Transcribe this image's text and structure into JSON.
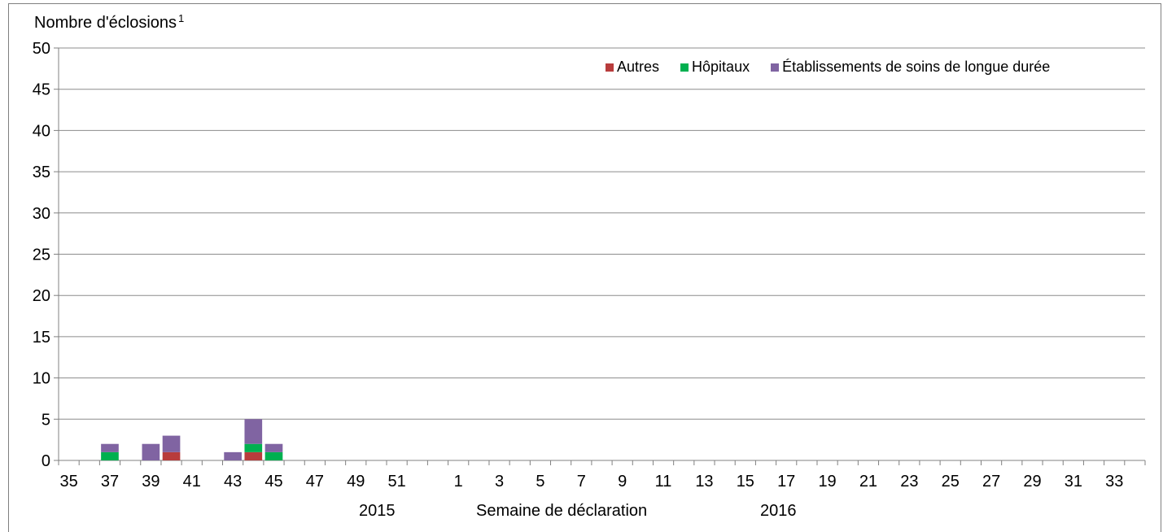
{
  "chart_data": {
    "type": "bar",
    "stacked": true,
    "ylabel": "Nombre d'éclosions",
    "ylabel_superscript": "1",
    "xlabel": "Semaine de déclaration",
    "year_labels": [
      "2015",
      "2016"
    ],
    "ylim": [
      0,
      50
    ],
    "yticks": [
      0,
      5,
      10,
      15,
      20,
      25,
      30,
      35,
      40,
      45,
      50
    ],
    "grid": true,
    "legend_position": "top-right",
    "categories": [
      "35",
      "36",
      "37",
      "38",
      "39",
      "40",
      "41",
      "42",
      "43",
      "44",
      "45",
      "46",
      "47",
      "48",
      "49",
      "50",
      "51",
      "52",
      "53",
      "1",
      "2",
      "3",
      "4",
      "5",
      "6",
      "7",
      "8",
      "9",
      "10",
      "11",
      "12",
      "13",
      "14",
      "15",
      "16",
      "17",
      "18",
      "19",
      "20",
      "21",
      "22",
      "23",
      "24",
      "25",
      "26",
      "27",
      "28",
      "29",
      "30",
      "31",
      "32",
      "33",
      "34"
    ],
    "x_tick_labels": [
      "35",
      "37",
      "39",
      "41",
      "43",
      "45",
      "47",
      "49",
      "51",
      "1",
      "3",
      "5",
      "7",
      "9",
      "11",
      "13",
      "15",
      "17",
      "19",
      "21",
      "23",
      "25",
      "27",
      "29",
      "31",
      "33"
    ],
    "series": [
      {
        "name": "Autres",
        "color": "#b83c3c",
        "values": [
          0,
          0,
          0,
          0,
          0,
          1,
          0,
          0,
          0,
          1,
          0,
          0,
          0,
          0,
          0,
          0,
          0,
          0,
          0,
          0,
          0,
          0,
          0,
          0,
          0,
          0,
          0,
          0,
          0,
          0,
          0,
          0,
          0,
          0,
          0,
          0,
          0,
          0,
          0,
          0,
          0,
          0,
          0,
          0,
          0,
          0,
          0,
          0,
          0,
          0,
          0,
          0,
          0
        ]
      },
      {
        "name": "Hôpitaux",
        "color": "#00b050",
        "values": [
          0,
          0,
          1,
          0,
          0,
          0,
          0,
          0,
          0,
          1,
          1,
          0,
          0,
          0,
          0,
          0,
          0,
          0,
          0,
          0,
          0,
          0,
          0,
          0,
          0,
          0,
          0,
          0,
          0,
          0,
          0,
          0,
          0,
          0,
          0,
          0,
          0,
          0,
          0,
          0,
          0,
          0,
          0,
          0,
          0,
          0,
          0,
          0,
          0,
          0,
          0,
          0,
          0
        ]
      },
      {
        "name": "Établissements de soins de longue durée",
        "color": "#8064a2",
        "values": [
          0,
          0,
          1,
          0,
          2,
          2,
          0,
          0,
          1,
          3,
          1,
          0,
          0,
          0,
          0,
          0,
          0,
          0,
          0,
          0,
          0,
          0,
          0,
          0,
          0,
          0,
          0,
          0,
          0,
          0,
          0,
          0,
          0,
          0,
          0,
          0,
          0,
          0,
          0,
          0,
          0,
          0,
          0,
          0,
          0,
          0,
          0,
          0,
          0,
          0,
          0,
          0,
          0
        ]
      }
    ]
  }
}
